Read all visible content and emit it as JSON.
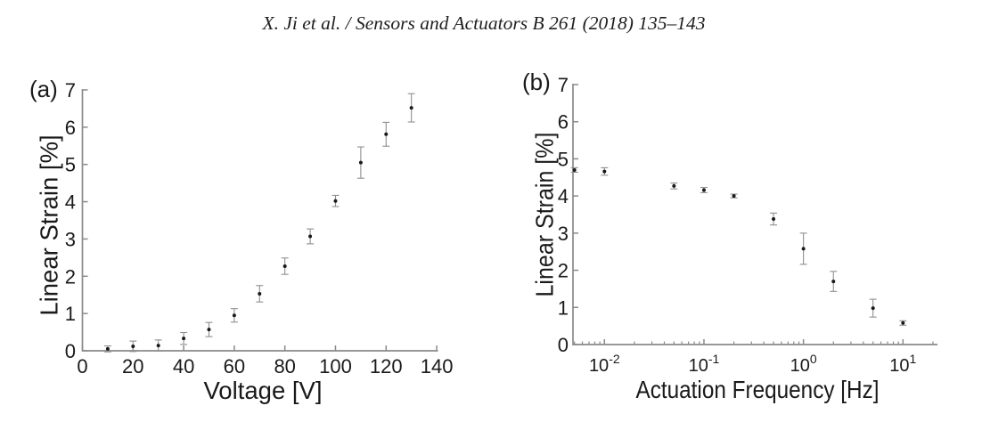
{
  "header": {
    "citation": "X. Ji et al. / Sensors and Actuators B 261 (2018) 135–143"
  },
  "colors": {
    "axis": "#8a8a8a",
    "error_bar": "#8f8f8f",
    "marker": "#1a1a1a",
    "text": "#1a1a1a"
  },
  "chart_data": [
    {
      "type": "scatter",
      "id": "a",
      "panel_label": "(a)",
      "xlabel": "Voltage [V]",
      "ylabel": "Linear Strain [%]",
      "xscale": "linear",
      "xlim": [
        0,
        140.5
      ],
      "ylim": [
        0,
        7
      ],
      "xticks": [
        0,
        20,
        40,
        60,
        80,
        100,
        120,
        140
      ],
      "yticks": [
        0,
        1,
        2,
        3,
        4,
        5,
        6,
        7
      ],
      "points": [
        {
          "x": 10,
          "y": 0.05,
          "err": 0.08
        },
        {
          "x": 20,
          "y": 0.12,
          "err": 0.14
        },
        {
          "x": 30,
          "y": 0.14,
          "err": 0.15
        },
        {
          "x": 40,
          "y": 0.33,
          "err": 0.16
        },
        {
          "x": 50,
          "y": 0.57,
          "err": 0.19
        },
        {
          "x": 60,
          "y": 0.95,
          "err": 0.18
        },
        {
          "x": 70,
          "y": 1.53,
          "err": 0.22
        },
        {
          "x": 80,
          "y": 2.27,
          "err": 0.22
        },
        {
          "x": 90,
          "y": 3.07,
          "err": 0.2
        },
        {
          "x": 100,
          "y": 4.02,
          "err": 0.15
        },
        {
          "x": 110,
          "y": 5.05,
          "err": 0.42
        },
        {
          "x": 120,
          "y": 5.81,
          "err": 0.32
        },
        {
          "x": 130,
          "y": 6.52,
          "err": 0.38
        }
      ]
    },
    {
      "type": "scatter",
      "id": "b",
      "panel_label": "(b)",
      "xlabel": "Actuation Frequency [Hz]",
      "ylabel": "Linear Strain [%]",
      "xscale": "log",
      "xlim": [
        0.00483,
        22.2
      ],
      "ylim": [
        0,
        7
      ],
      "xticks": [
        0.01,
        0.1,
        1,
        10
      ],
      "yticks": [
        0,
        1,
        2,
        3,
        4,
        5,
        6,
        7
      ],
      "points": [
        {
          "x": 0.005,
          "y": 4.7,
          "err": 0.06
        },
        {
          "x": 0.01,
          "y": 4.66,
          "err": 0.1
        },
        {
          "x": 0.05,
          "y": 4.27,
          "err": 0.08
        },
        {
          "x": 0.1,
          "y": 4.16,
          "err": 0.07
        },
        {
          "x": 0.2,
          "y": 4.0,
          "err": 0.05
        },
        {
          "x": 0.5,
          "y": 3.38,
          "err": 0.16
        },
        {
          "x": 1,
          "y": 2.58,
          "err": 0.42
        },
        {
          "x": 2,
          "y": 1.7,
          "err": 0.27
        },
        {
          "x": 5,
          "y": 0.98,
          "err": 0.24
        },
        {
          "x": 10,
          "y": 0.58,
          "err": 0.06
        }
      ]
    }
  ]
}
